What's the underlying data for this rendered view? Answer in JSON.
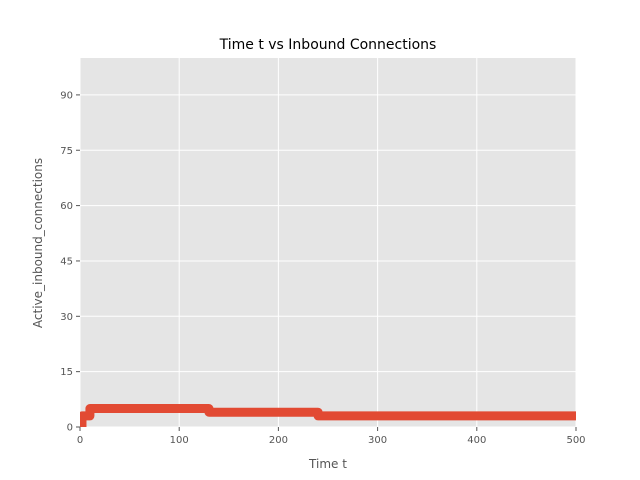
{
  "chart_data": {
    "type": "line",
    "title": "Time t vs Inbound Connections",
    "xlabel": "Time t",
    "ylabel": "Active_inbound_connections",
    "xlim": [
      0,
      500
    ],
    "ylim": [
      0,
      100
    ],
    "xticks": [
      0,
      100,
      200,
      300,
      400,
      500
    ],
    "yticks": [
      0,
      15,
      30,
      45,
      60,
      75,
      90
    ],
    "grid": true,
    "series": [
      {
        "color": "#e24a33",
        "x": [
          0,
          2,
          2,
          10,
          10,
          130,
          130,
          240,
          240,
          500
        ],
        "y": [
          0,
          0,
          3,
          3,
          5,
          5,
          4,
          4,
          3,
          3
        ]
      }
    ]
  },
  "colors": {
    "plot_background": "#e5e5e5",
    "grid": "#ffffff",
    "line": "#e24a33",
    "text": "#555555"
  }
}
